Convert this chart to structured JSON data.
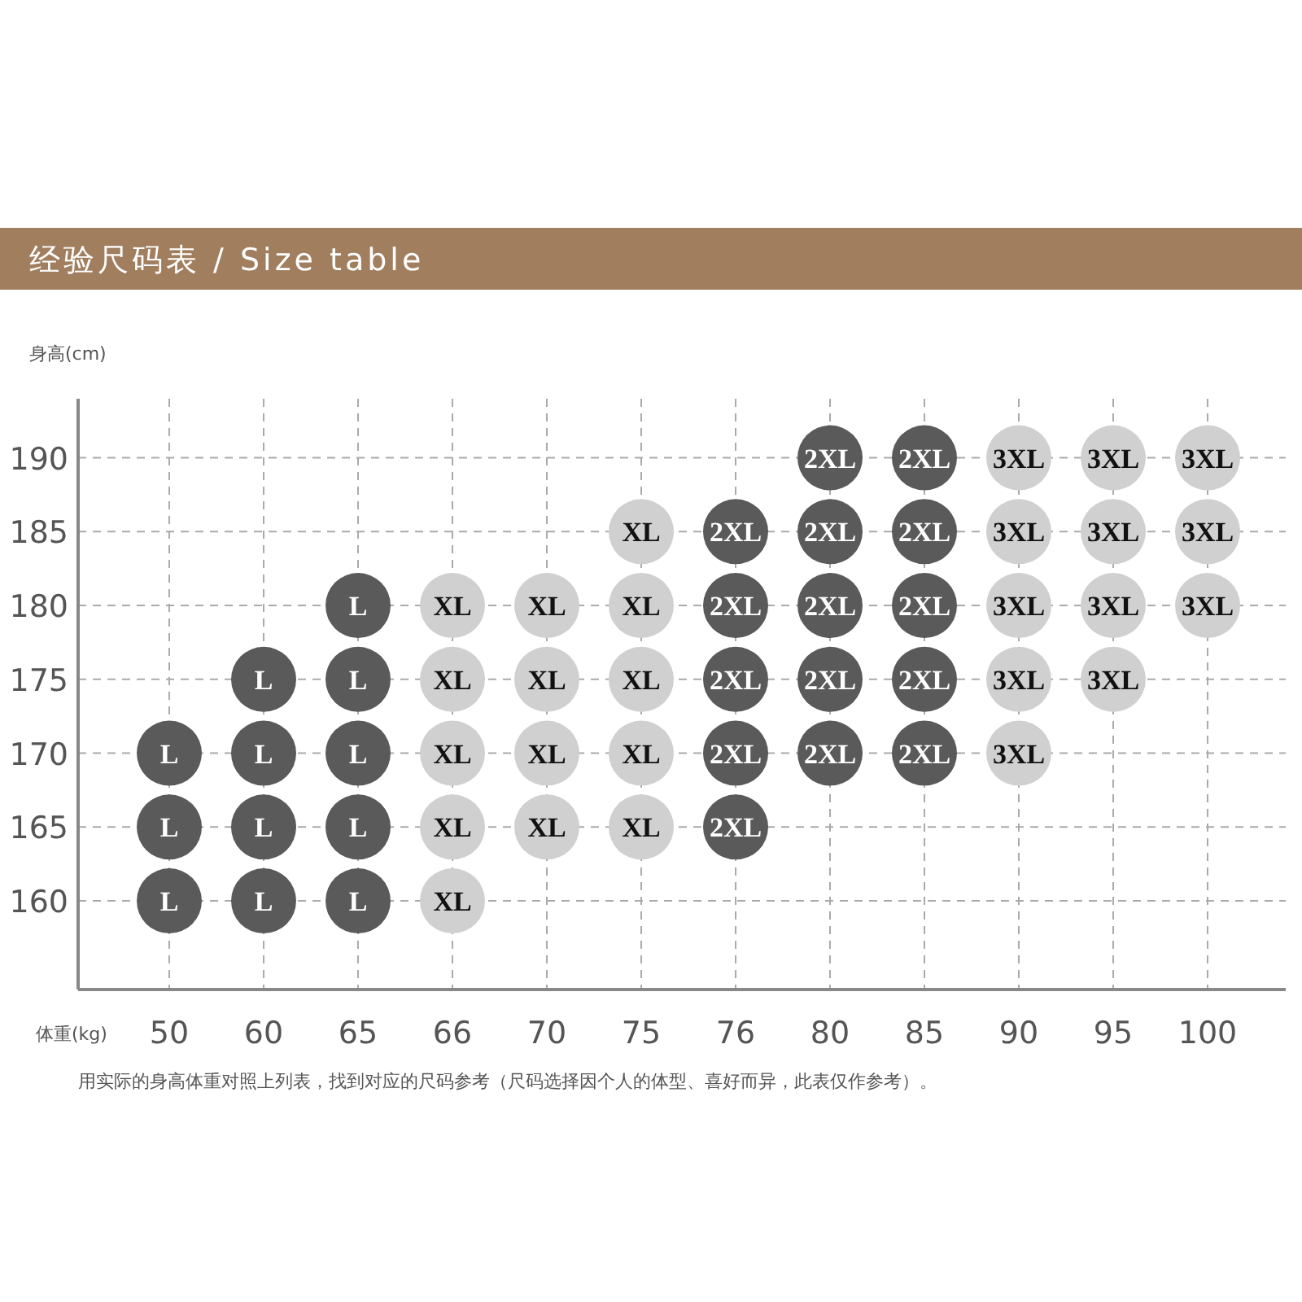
{
  "chart_data": {
    "type": "scatter",
    "title": "经验尺码表 / Size table",
    "xlabel": "体重(kg)",
    "ylabel": "身高(cm)",
    "annotations": [
      "用实际的身高体重对照上列表，找到对应的尺码参考（尺码选择因个人的体型、喜好而异，此表仅作参考）。"
    ],
    "categories": [
      "50",
      "60",
      "65",
      "66",
      "70",
      "75",
      "76",
      "80",
      "85",
      "90",
      "95",
      "100"
    ],
    "ylim": [
      154,
      194
    ],
    "yticks": [
      160,
      165,
      170,
      175,
      180,
      185,
      190
    ],
    "grid": true,
    "marker": "circle",
    "series": [
      {
        "name": "L",
        "color": "#5a5a5a",
        "x": [
          "50",
          "50",
          "50",
          "60",
          "60",
          "60",
          "60",
          "65",
          "65",
          "65",
          "65",
          "65"
        ],
        "values": [
          160,
          165,
          170,
          160,
          165,
          170,
          175,
          160,
          165,
          170,
          175,
          180
        ]
      },
      {
        "name": "XL",
        "color": "#d0d0d0",
        "x": [
          "66",
          "66",
          "66",
          "66",
          "66",
          "70",
          "70",
          "70",
          "70",
          "75",
          "75",
          "75",
          "75",
          "75"
        ],
        "values": [
          160,
          165,
          170,
          175,
          180,
          165,
          170,
          175,
          180,
          165,
          170,
          175,
          180,
          185
        ]
      },
      {
        "name": "2XL",
        "color": "#5a5a5a",
        "x": [
          "76",
          "76",
          "76",
          "76",
          "76",
          "80",
          "80",
          "80",
          "80",
          "80",
          "85",
          "85",
          "85",
          "85",
          "85"
        ],
        "values": [
          165,
          170,
          175,
          180,
          185,
          170,
          175,
          180,
          185,
          190,
          170,
          175,
          180,
          185,
          190
        ]
      },
      {
        "name": "3XL",
        "color": "#d0d0d0",
        "x": [
          "90",
          "90",
          "90",
          "90",
          "90",
          "95",
          "95",
          "95",
          "95",
          "100",
          "100",
          "100"
        ],
        "values": [
          170,
          175,
          180,
          185,
          190,
          175,
          180,
          185,
          190,
          180,
          185,
          190
        ]
      }
    ]
  }
}
